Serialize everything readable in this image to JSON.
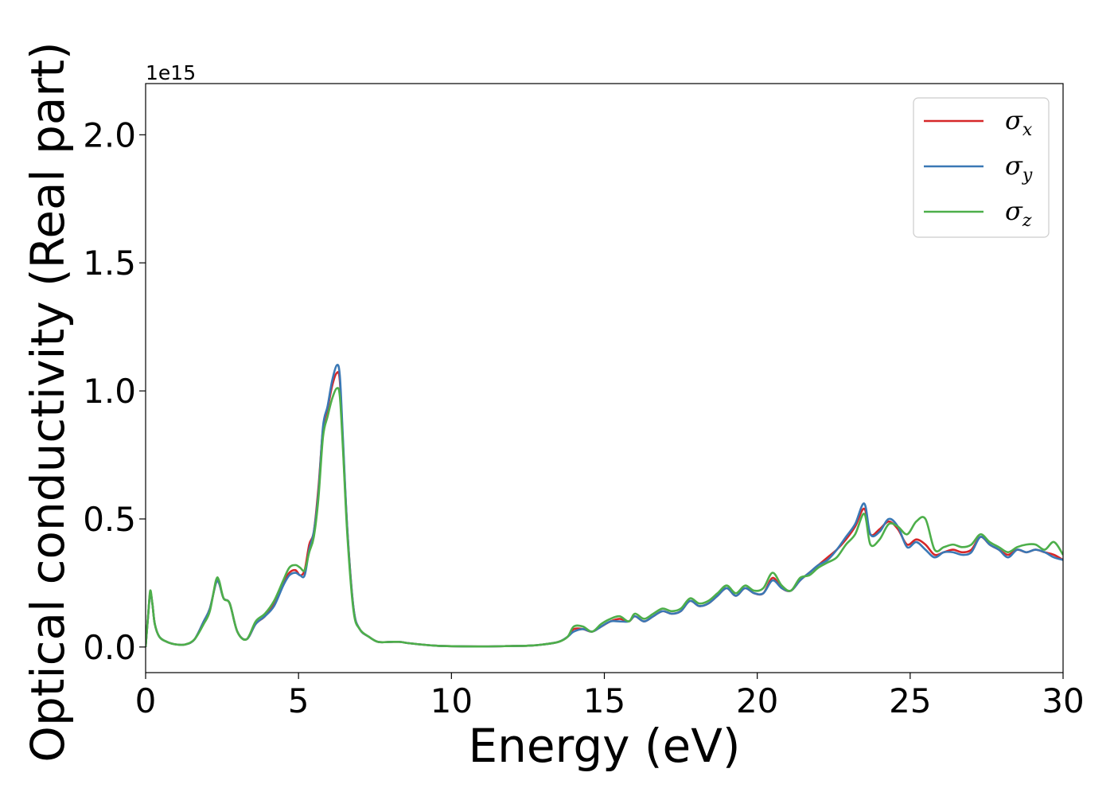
{
  "chart_data": {
    "type": "line",
    "xlabel": "Energy (eV)",
    "ylabel": "Optical conductivity (Real part)",
    "y_offset_label": "1e15",
    "y_scale": 1000000000000000.0,
    "xlim": [
      0,
      30
    ],
    "ylim": [
      -0.1,
      2.2
    ],
    "x_ticks": [
      0,
      5,
      10,
      15,
      20,
      25,
      30
    ],
    "x_tick_labels": [
      "0",
      "5",
      "10",
      "15",
      "20",
      "25",
      "30"
    ],
    "y_ticks": [
      0.0,
      0.5,
      1.0,
      1.5,
      2.0
    ],
    "y_tick_labels": [
      "0.0",
      "0.5",
      "1.0",
      "1.5",
      "2.0"
    ],
    "grid": false,
    "legend_position": "top-right",
    "series": [
      {
        "name": "σ",
        "subscript": "x",
        "color": "#d62728",
        "x": [
          0,
          0.08,
          0.15,
          0.22,
          0.3,
          0.45,
          0.7,
          1.0,
          1.3,
          1.6,
          1.9,
          2.1,
          2.3,
          2.4,
          2.55,
          2.75,
          3.0,
          3.3,
          3.6,
          3.9,
          4.2,
          4.5,
          4.7,
          4.9,
          5.05,
          5.2,
          5.35,
          5.5,
          5.65,
          5.8,
          5.95,
          6.1,
          6.25,
          6.35,
          6.45,
          6.6,
          6.8,
          7.0,
          7.3,
          7.6,
          8.0,
          8.3,
          8.6,
          9.0,
          9.5,
          10,
          11,
          12,
          12.5,
          13,
          13.5,
          13.8,
          14.0,
          14.3,
          14.6,
          14.9,
          15.2,
          15.5,
          15.8,
          16.0,
          16.3,
          16.6,
          16.9,
          17.2,
          17.5,
          17.8,
          18.1,
          18.4,
          18.7,
          19.0,
          19.3,
          19.6,
          19.9,
          20.2,
          20.5,
          20.8,
          21.1,
          21.4,
          21.7,
          22.0,
          22.3,
          22.6,
          22.9,
          23.2,
          23.5,
          23.7,
          24.0,
          24.3,
          24.6,
          24.9,
          25.2,
          25.5,
          25.8,
          26.1,
          26.4,
          26.7,
          27.0,
          27.3,
          27.6,
          27.9,
          28.2,
          28.5,
          28.8,
          29.1,
          29.4,
          29.7,
          30.0
        ],
        "y": [
          0.0,
          0.12,
          0.21,
          0.17,
          0.09,
          0.04,
          0.02,
          0.01,
          0.01,
          0.03,
          0.1,
          0.15,
          0.25,
          0.25,
          0.19,
          0.17,
          0.06,
          0.03,
          0.09,
          0.12,
          0.17,
          0.25,
          0.29,
          0.3,
          0.28,
          0.3,
          0.4,
          0.45,
          0.62,
          0.85,
          0.93,
          1.02,
          1.07,
          1.04,
          0.8,
          0.45,
          0.15,
          0.07,
          0.04,
          0.02,
          0.02,
          0.02,
          0.015,
          0.01,
          0.005,
          0.003,
          0.002,
          0.004,
          0.005,
          0.01,
          0.02,
          0.04,
          0.07,
          0.07,
          0.06,
          0.08,
          0.1,
          0.11,
          0.1,
          0.12,
          0.1,
          0.12,
          0.14,
          0.13,
          0.14,
          0.18,
          0.16,
          0.17,
          0.2,
          0.23,
          0.2,
          0.23,
          0.21,
          0.21,
          0.27,
          0.23,
          0.22,
          0.26,
          0.29,
          0.32,
          0.35,
          0.38,
          0.42,
          0.47,
          0.54,
          0.44,
          0.46,
          0.49,
          0.46,
          0.4,
          0.42,
          0.4,
          0.36,
          0.37,
          0.38,
          0.37,
          0.38,
          0.43,
          0.4,
          0.38,
          0.36,
          0.38,
          0.37,
          0.38,
          0.37,
          0.36,
          0.34
        ]
      },
      {
        "name": "σ",
        "subscript": "y",
        "color": "#3a78b5",
        "x": [
          0,
          0.08,
          0.15,
          0.22,
          0.3,
          0.45,
          0.7,
          1.0,
          1.3,
          1.6,
          1.9,
          2.1,
          2.3,
          2.4,
          2.55,
          2.75,
          3.0,
          3.3,
          3.6,
          3.9,
          4.2,
          4.5,
          4.7,
          4.9,
          5.05,
          5.2,
          5.35,
          5.5,
          5.65,
          5.8,
          5.95,
          6.1,
          6.25,
          6.35,
          6.45,
          6.6,
          6.8,
          7.0,
          7.3,
          7.6,
          8.0,
          8.3,
          8.6,
          9.0,
          9.5,
          10,
          11,
          12,
          12.5,
          13,
          13.5,
          13.8,
          14.0,
          14.3,
          14.6,
          14.9,
          15.2,
          15.5,
          15.8,
          16.0,
          16.3,
          16.6,
          16.9,
          17.2,
          17.5,
          17.8,
          18.1,
          18.4,
          18.7,
          19.0,
          19.3,
          19.6,
          19.9,
          20.2,
          20.5,
          20.8,
          21.1,
          21.4,
          21.7,
          22.0,
          22.3,
          22.6,
          22.9,
          23.2,
          23.5,
          23.7,
          24.0,
          24.3,
          24.6,
          24.9,
          25.2,
          25.5,
          25.8,
          26.1,
          26.4,
          26.7,
          27.0,
          27.3,
          27.6,
          27.9,
          28.2,
          28.5,
          28.8,
          29.1,
          29.4,
          29.7,
          30.0
        ],
        "y": [
          0.0,
          0.12,
          0.21,
          0.17,
          0.09,
          0.04,
          0.02,
          0.01,
          0.01,
          0.03,
          0.1,
          0.15,
          0.25,
          0.25,
          0.19,
          0.17,
          0.06,
          0.03,
          0.09,
          0.12,
          0.16,
          0.24,
          0.28,
          0.29,
          0.28,
          0.28,
          0.38,
          0.45,
          0.6,
          0.86,
          0.94,
          1.04,
          1.1,
          1.06,
          0.82,
          0.45,
          0.15,
          0.07,
          0.04,
          0.02,
          0.02,
          0.02,
          0.015,
          0.01,
          0.005,
          0.003,
          0.002,
          0.004,
          0.005,
          0.01,
          0.02,
          0.04,
          0.06,
          0.07,
          0.06,
          0.08,
          0.1,
          0.1,
          0.1,
          0.12,
          0.1,
          0.12,
          0.14,
          0.13,
          0.14,
          0.18,
          0.16,
          0.17,
          0.2,
          0.23,
          0.2,
          0.23,
          0.21,
          0.21,
          0.26,
          0.23,
          0.22,
          0.26,
          0.29,
          0.32,
          0.34,
          0.38,
          0.43,
          0.48,
          0.56,
          0.44,
          0.45,
          0.5,
          0.47,
          0.39,
          0.41,
          0.38,
          0.35,
          0.37,
          0.37,
          0.36,
          0.37,
          0.43,
          0.4,
          0.38,
          0.35,
          0.38,
          0.37,
          0.38,
          0.37,
          0.35,
          0.34
        ]
      },
      {
        "name": "σ",
        "subscript": "z",
        "color": "#4daf4a",
        "x": [
          0,
          0.08,
          0.15,
          0.22,
          0.3,
          0.45,
          0.7,
          1.0,
          1.3,
          1.6,
          1.9,
          2.1,
          2.3,
          2.4,
          2.55,
          2.75,
          3.0,
          3.3,
          3.6,
          3.9,
          4.2,
          4.5,
          4.7,
          4.9,
          5.05,
          5.2,
          5.35,
          5.5,
          5.65,
          5.8,
          5.95,
          6.1,
          6.25,
          6.35,
          6.45,
          6.6,
          6.8,
          7.0,
          7.3,
          7.6,
          8.0,
          8.3,
          8.6,
          9.0,
          9.5,
          10,
          11,
          12,
          12.5,
          13,
          13.5,
          13.8,
          14.0,
          14.3,
          14.6,
          14.9,
          15.2,
          15.5,
          15.8,
          16.0,
          16.3,
          16.6,
          16.9,
          17.2,
          17.5,
          17.8,
          18.1,
          18.4,
          18.7,
          19.0,
          19.3,
          19.6,
          19.9,
          20.2,
          20.5,
          20.8,
          21.1,
          21.4,
          21.7,
          22.0,
          22.3,
          22.6,
          22.9,
          23.2,
          23.5,
          23.7,
          24.0,
          24.3,
          24.6,
          24.9,
          25.2,
          25.5,
          25.8,
          26.1,
          26.4,
          26.7,
          27.0,
          27.3,
          27.6,
          27.9,
          28.2,
          28.5,
          28.8,
          29.1,
          29.4,
          29.7,
          30.0
        ],
        "y": [
          0.0,
          0.12,
          0.22,
          0.17,
          0.09,
          0.04,
          0.02,
          0.01,
          0.01,
          0.03,
          0.09,
          0.14,
          0.26,
          0.26,
          0.19,
          0.17,
          0.06,
          0.03,
          0.1,
          0.13,
          0.18,
          0.26,
          0.31,
          0.32,
          0.31,
          0.3,
          0.37,
          0.43,
          0.58,
          0.82,
          0.9,
          0.97,
          1.01,
          0.98,
          0.78,
          0.43,
          0.14,
          0.07,
          0.04,
          0.02,
          0.02,
          0.02,
          0.015,
          0.01,
          0.005,
          0.003,
          0.002,
          0.004,
          0.005,
          0.01,
          0.02,
          0.04,
          0.08,
          0.08,
          0.06,
          0.09,
          0.11,
          0.12,
          0.1,
          0.13,
          0.11,
          0.13,
          0.15,
          0.14,
          0.15,
          0.19,
          0.17,
          0.18,
          0.21,
          0.24,
          0.21,
          0.24,
          0.22,
          0.23,
          0.29,
          0.24,
          0.22,
          0.27,
          0.28,
          0.31,
          0.33,
          0.35,
          0.4,
          0.44,
          0.52,
          0.4,
          0.42,
          0.48,
          0.47,
          0.44,
          0.49,
          0.5,
          0.38,
          0.39,
          0.4,
          0.39,
          0.4,
          0.44,
          0.41,
          0.39,
          0.37,
          0.39,
          0.4,
          0.4,
          0.38,
          0.41,
          0.36
        ]
      }
    ]
  }
}
